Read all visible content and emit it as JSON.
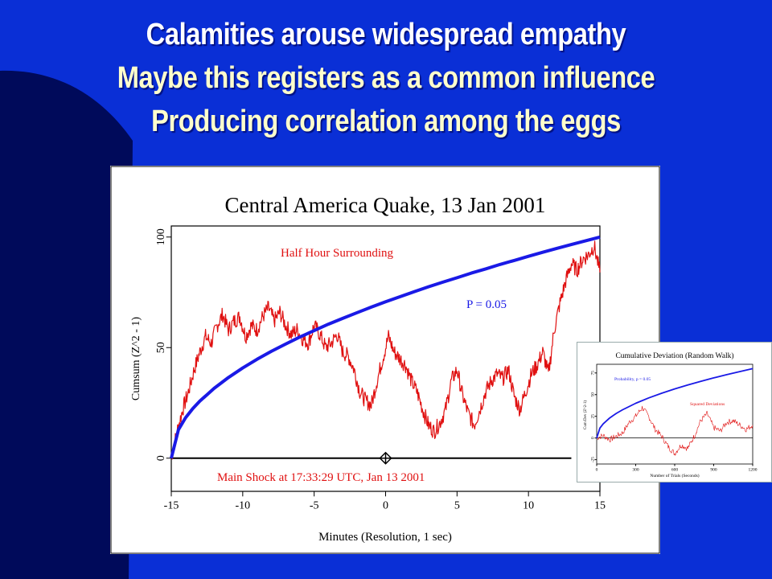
{
  "slide": {
    "title_lines": [
      "Calamities arouse widespread empathy",
      "Maybe this registers as a common influence",
      "Producing correlation among the eggs"
    ]
  },
  "colors": {
    "background": "#0a2fd6",
    "swoosh": "#000a5a",
    "title_white": "#ffffff",
    "title_cream": "#ffffcc",
    "series_red": "#e01010",
    "series_blue": "#1a1ae6"
  },
  "chart_data": [
    {
      "type": "line",
      "title": "Central America Quake, 13 Jan 2001",
      "xlabel": "Minutes (Resolution, 1 sec)",
      "ylabel": "Cumsum (Z^2 - 1)",
      "xlim": [
        -15,
        15
      ],
      "ylim": [
        -15,
        105
      ],
      "xticks": [
        "-15",
        "-10",
        "-5",
        "0",
        "5",
        "10",
        "15"
      ],
      "yticks": [
        "0",
        "50",
        "100"
      ],
      "grid": false,
      "annotations": {
        "series_label": "Half Hour Surrounding",
        "p_label": "P = 0.05",
        "event_label": "Main Shock at 17:33:29 UTC, Jan 13 2001"
      },
      "event_marker": {
        "x": 0,
        "y": 0,
        "shape": "diamond-cross"
      },
      "baseline": {
        "y": 0,
        "x_range": [
          -15,
          13
        ]
      },
      "series": [
        {
          "name": "Half Hour Surrounding",
          "color": "#e01010",
          "x": [
            -15,
            -14.6,
            -14.2,
            -13.8,
            -13.4,
            -13,
            -12.6,
            -12.2,
            -11.8,
            -11.4,
            -11,
            -10.6,
            -10.2,
            -9.8,
            -9.4,
            -9,
            -8.6,
            -8.2,
            -7.8,
            -7.4,
            -7,
            -6.6,
            -6.2,
            -5.8,
            -5.4,
            -5,
            -4.6,
            -4.2,
            -3.8,
            -3.4,
            -3,
            -2.6,
            -2.2,
            -1.8,
            -1.4,
            -1,
            -0.6,
            -0.2,
            0.2,
            0.6,
            1,
            1.4,
            1.8,
            2.2,
            2.6,
            3,
            3.4,
            3.8,
            4.2,
            4.6,
            5,
            5.4,
            5.8,
            6.2,
            6.6,
            7,
            7.4,
            7.8,
            8.2,
            8.6,
            9,
            9.4,
            9.8,
            10.2,
            10.6,
            11,
            11.4,
            11.8,
            12.2,
            12.6,
            13,
            13.4,
            13.8,
            14.2,
            14.6,
            15
          ],
          "y": [
            0,
            12,
            22,
            30,
            40,
            48,
            55,
            52,
            60,
            65,
            58,
            62,
            64,
            55,
            60,
            58,
            64,
            68,
            62,
            66,
            60,
            56,
            58,
            54,
            52,
            60,
            56,
            50,
            52,
            56,
            48,
            46,
            40,
            30,
            26,
            24,
            35,
            45,
            55,
            48,
            45,
            42,
            35,
            30,
            22,
            15,
            12,
            16,
            22,
            35,
            40,
            28,
            20,
            15,
            22,
            30,
            35,
            38,
            36,
            40,
            28,
            22,
            30,
            38,
            42,
            48,
            38,
            58,
            70,
            80,
            88,
            85,
            90,
            92,
            96,
            84
          ]
        },
        {
          "name": "P = 0.05",
          "color": "#1a1ae6",
          "x": [
            -15,
            -14.5,
            -14,
            -13.5,
            -13,
            -12,
            -11,
            -10,
            -9,
            -8,
            -7,
            -6,
            -5,
            -4,
            -3,
            -2,
            -1,
            0,
            1,
            2,
            3,
            4,
            5,
            6,
            7,
            8,
            9,
            10,
            11,
            12,
            13,
            14,
            15
          ],
          "y": [
            0,
            12.9,
            18.3,
            22.4,
            25.8,
            31.6,
            36.5,
            40.8,
            44.7,
            48.3,
            51.6,
            54.8,
            57.7,
            60.6,
            63.2,
            65.8,
            68.3,
            70.7,
            73.0,
            75.3,
            77.5,
            79.6,
            81.6,
            83.7,
            85.6,
            87.6,
            89.4,
            91.3,
            93.1,
            94.9,
            96.6,
            98.3,
            100
          ]
        }
      ]
    },
    {
      "type": "line",
      "title": "Cumulative Deviation (Random Walk)",
      "xlabel": "Number of Trials (Seconds)",
      "ylabel": "Cum Dev (Z^2-1)",
      "xlim": [
        0,
        1200
      ],
      "ylim": [
        -30,
        85
      ],
      "xticks": [
        "0",
        "300",
        "600",
        "900",
        "1200"
      ],
      "yticks": [
        "-25",
        "0",
        "25",
        "50",
        "75"
      ],
      "grid": false,
      "annotations": {
        "p_label": "Probability, p = 0.05",
        "series_label": "Squared Deviations"
      },
      "series": [
        {
          "name": "Squared Deviations",
          "color": "#e01010",
          "x": [
            0,
            50,
            100,
            150,
            200,
            250,
            300,
            350,
            400,
            450,
            500,
            550,
            600,
            650,
            700,
            750,
            800,
            850,
            900,
            950,
            1000,
            1050,
            1100,
            1150,
            1200
          ],
          "y": [
            0,
            3,
            -2,
            2,
            6,
            18,
            25,
            35,
            25,
            10,
            2,
            -10,
            -18,
            -8,
            -12,
            2,
            20,
            28,
            12,
            8,
            18,
            20,
            15,
            10,
            15
          ]
        },
        {
          "name": "Probability, p = 0.05",
          "color": "#1a1ae6",
          "x": [
            0,
            25,
            50,
            100,
            150,
            200,
            300,
            400,
            500,
            600,
            700,
            800,
            900,
            1000,
            1100,
            1200
          ],
          "y": [
            0,
            11.5,
            16.3,
            23.1,
            28.3,
            32.6,
            40.0,
            46.2,
            51.6,
            56.6,
            61.1,
            65.3,
            69.3,
            73.0,
            76.6,
            80.0
          ]
        }
      ]
    }
  ]
}
